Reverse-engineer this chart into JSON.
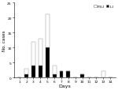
{
  "days": [
    1,
    2,
    3,
    4,
    5,
    6,
    7,
    8,
    9,
    10,
    11,
    12,
    13,
    14
  ],
  "ili": [
    0,
    1,
    4,
    4,
    10,
    1,
    2,
    2,
    0,
    1,
    0,
    0,
    0,
    0
  ],
  "pili": [
    0,
    2,
    8,
    9,
    11,
    3,
    0,
    0,
    0,
    0,
    0,
    0,
    2,
    0
  ],
  "ili_color": "#000000",
  "pili_color": "#ffffff",
  "bar_edge_color": "#888888",
  "ylabel": "No. cases",
  "xlabel": "Days",
  "ylim": [
    0,
    25
  ],
  "yticks": [
    0,
    5,
    10,
    15,
    20,
    25
  ],
  "legend_pili": "P-ILI",
  "legend_ili": "ILI",
  "background_color": "#ffffff",
  "figwidth": 1.5,
  "figheight": 1.15,
  "dpi": 100
}
